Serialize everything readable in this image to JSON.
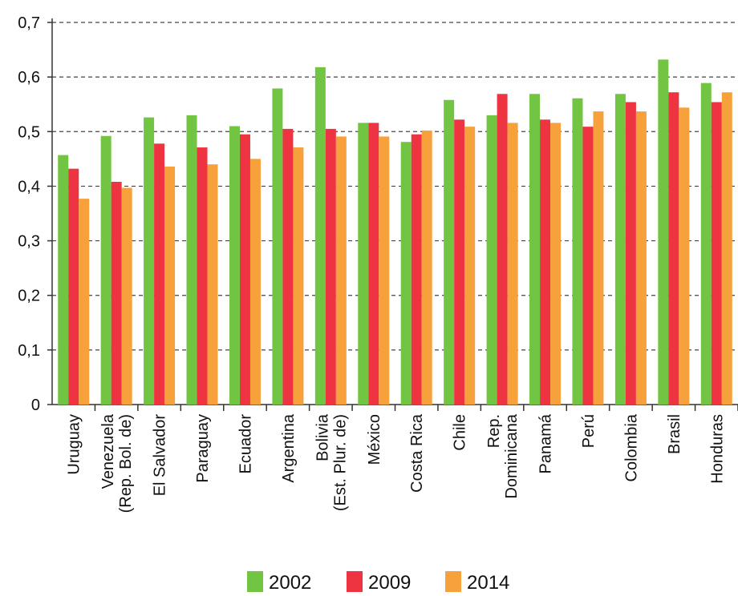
{
  "chart_data": {
    "type": "bar",
    "categories": [
      [
        "Uruguay"
      ],
      [
        "Venezuela",
        "(Rep. Bol. de)"
      ],
      [
        "El Salvador"
      ],
      [
        "Paraguay"
      ],
      [
        "Ecuador"
      ],
      [
        "Argentina"
      ],
      [
        "Bolivia",
        "(Est. Plur. de)"
      ],
      [
        "México"
      ],
      [
        "Costa Rica"
      ],
      [
        "Chile"
      ],
      [
        "Rep.",
        "Dominicana"
      ],
      [
        "Panamá"
      ],
      [
        "Perú"
      ],
      [
        "Colombia"
      ],
      [
        "Brasil"
      ],
      [
        "Honduras"
      ]
    ],
    "series": [
      {
        "name": "2002",
        "color": "#72c443",
        "values": [
          0.457,
          0.492,
          0.526,
          0.53,
          0.51,
          0.579,
          0.618,
          0.516,
          0.481,
          0.558,
          0.53,
          0.569,
          0.561,
          0.569,
          0.632,
          0.589
        ]
      },
      {
        "name": "2009",
        "color": "#ee3440",
        "values": [
          0.432,
          0.408,
          0.478,
          0.471,
          0.495,
          0.505,
          0.505,
          0.516,
          0.495,
          0.522,
          0.569,
          0.522,
          0.509,
          0.554,
          0.572,
          0.554
        ]
      },
      {
        "name": "2014",
        "color": "#f6a13c",
        "values": [
          0.377,
          0.397,
          0.436,
          0.44,
          0.45,
          0.471,
          0.491,
          0.491,
          0.502,
          0.509,
          0.516,
          0.516,
          0.537,
          0.537,
          0.544,
          0.572
        ]
      }
    ],
    "ylim": [
      0,
      0.7
    ],
    "yticks": [
      0,
      {
        "value": 0.1,
        "label": "0,1"
      },
      {
        "value": 0.2,
        "label": "0,2"
      },
      {
        "value": 0.3,
        "label": "0,3"
      },
      {
        "value": 0.4,
        "label": "0,4"
      },
      {
        "value": 0.5,
        "label": "0,5"
      },
      {
        "value": 0.6,
        "label": "0,6"
      },
      {
        "value": 0.7,
        "label": "0,7"
      }
    ],
    "grid": true,
    "legend": "bottom"
  }
}
